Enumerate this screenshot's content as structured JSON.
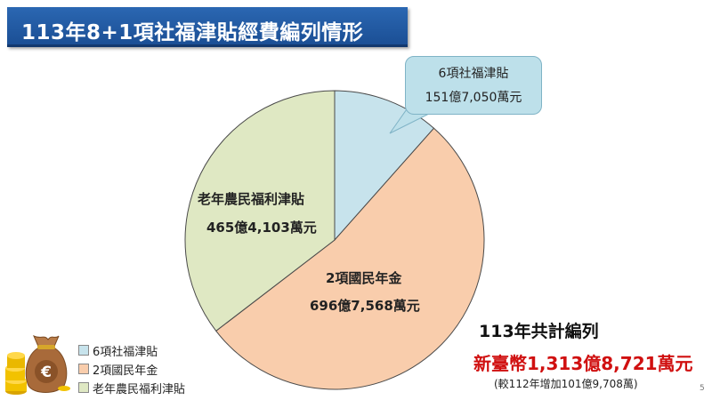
{
  "title": "113年8+1項社福津貼經費編列情形",
  "colors": {
    "title_bg": "#1f5aa6",
    "slice_1": "#c7e3ec",
    "slice_2": "#f9cdac",
    "slice_3": "#dfe8c3",
    "total_amount": "#d01010"
  },
  "chart_data": {
    "type": "pie",
    "title": "113年8+1項社福津貼經費編列情形",
    "unit": "萬元",
    "categories": [
      "6項社福津貼",
      "2項國民年金",
      "老年農民福利津貼"
    ],
    "values": [
      1517050,
      6967568,
      4654103
    ],
    "slices": [
      {
        "name": "6項社福津貼",
        "value_label": "151億7,050萬元"
      },
      {
        "name": "2項國民年金",
        "value_label": "696億7,568萬元"
      },
      {
        "name": "老年農民福利津貼",
        "value_label": "465億4,103萬元"
      }
    ],
    "legend": [
      "6項社福津貼",
      "2項國民年金",
      "老年農民福利津貼"
    ],
    "legend_position": "bottom-left"
  },
  "summary": {
    "heading": "113年共計編列",
    "amount": "新臺幣1,313億8,721萬元",
    "note": "(較112年增加101億9,708萬)"
  },
  "page_number": "5",
  "icons": {
    "decoration": "money-bag-euro-icon"
  }
}
